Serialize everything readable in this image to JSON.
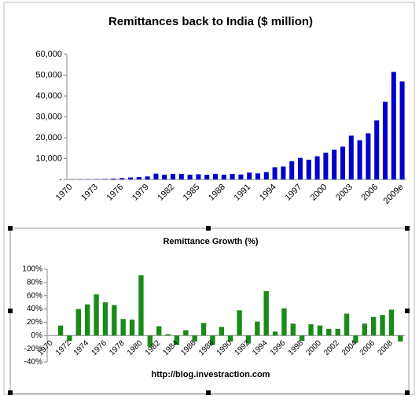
{
  "chart_data": [
    {
      "type": "bar",
      "title": "Remittances back to India ($ million)",
      "color": "#0000cc",
      "categories": [
        "1970",
        null,
        null,
        "1973",
        null,
        null,
        "1976",
        null,
        null,
        "1979",
        null,
        null,
        "1982",
        null,
        null,
        "1985",
        null,
        null,
        "1988",
        null,
        null,
        "1991",
        null,
        null,
        "1994",
        null,
        null,
        "1997",
        null,
        null,
        "2000",
        null,
        null,
        "2003",
        null,
        null,
        "2006",
        null,
        null,
        "2009e"
      ],
      "values": [
        80,
        100,
        120,
        150,
        220,
        430,
        640,
        940,
        1160,
        1440,
        2760,
        2300,
        2620,
        2660,
        2300,
        2470,
        2240,
        2670,
        2300,
        2610,
        2380,
        3290,
        2900,
        3520,
        5860,
        6220,
        8770,
        10330,
        9480,
        11120,
        12850,
        14270,
        15740,
        20990,
        18750,
        22130,
        28330,
        37220,
        51580,
        47000
      ],
      "ylim": [
        0,
        60000
      ],
      "yticks": [
        {
          "value": 0,
          "label": "-"
        },
        {
          "value": 10000,
          "label": "10,000"
        },
        {
          "value": 20000,
          "label": "20,000"
        },
        {
          "value": 30000,
          "label": "30,000"
        },
        {
          "value": 40000,
          "label": "40,000"
        },
        {
          "value": 50000,
          "label": "50,000"
        },
        {
          "value": 60000,
          "label": "60,000"
        }
      ],
      "grid": false
    },
    {
      "type": "bar",
      "title": "Remittance Growth (%)",
      "color": "#1a8a1a",
      "categories": [
        "1970",
        null,
        "1972",
        null,
        "1974",
        null,
        "1976",
        null,
        "1978",
        null,
        "1980",
        null,
        "1982",
        null,
        "1984",
        null,
        "1986",
        null,
        "1988",
        null,
        "1990",
        null,
        "1992",
        null,
        "1994",
        null,
        "1996",
        null,
        "1998",
        null,
        "2000",
        null,
        "2002",
        null,
        "2004",
        null,
        "2006",
        null,
        "2008",
        null
      ],
      "values": [
        null,
        15,
        -8,
        40,
        47,
        62,
        50,
        46,
        25,
        24,
        91,
        -17,
        14,
        2,
        -14,
        8,
        -9,
        19,
        -14,
        13,
        -9,
        38,
        -12,
        21,
        67,
        6,
        41,
        18,
        -8,
        17,
        15,
        10,
        10,
        33,
        -11,
        18,
        28,
        31,
        39,
        -9
      ],
      "ylim": [
        -40,
        100
      ],
      "yticks": [
        {
          "value": -40,
          "label": "-40%"
        },
        {
          "value": -20,
          "label": "-20%"
        },
        {
          "value": 0,
          "label": "0%"
        },
        {
          "value": 20,
          "label": "20%"
        },
        {
          "value": 40,
          "label": "40%"
        },
        {
          "value": 60,
          "label": "60%"
        },
        {
          "value": 80,
          "label": "80%"
        },
        {
          "value": 100,
          "label": "100%"
        }
      ],
      "grid": false,
      "annotation": "http://blog.investraction.com"
    }
  ]
}
